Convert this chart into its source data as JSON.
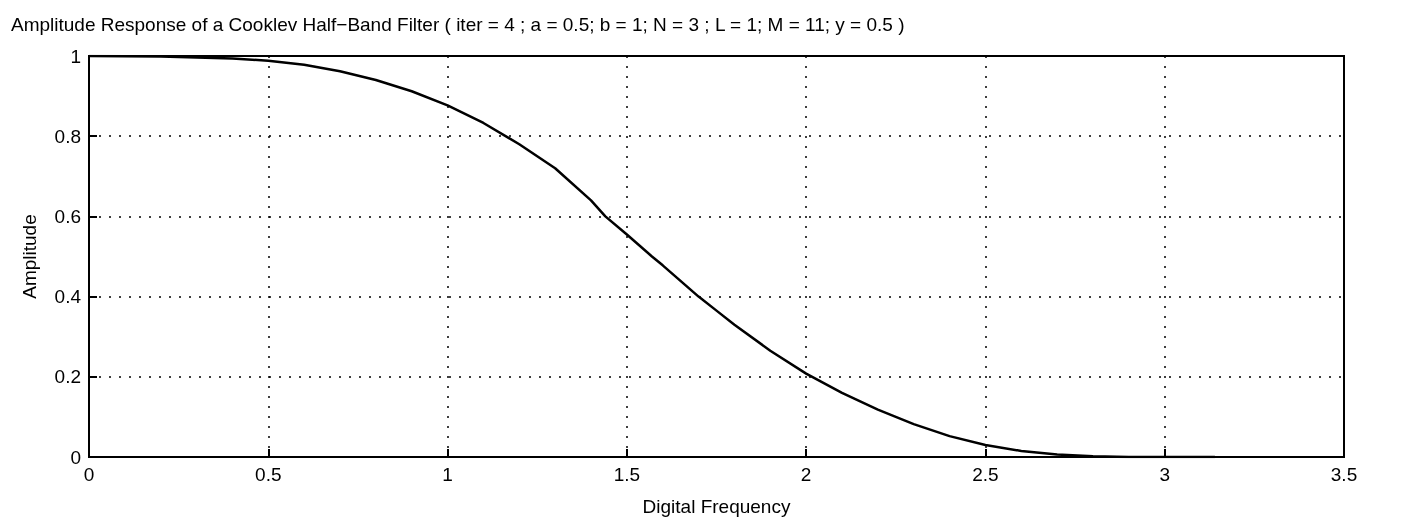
{
  "chart_data": {
    "type": "line",
    "title": "Amplitude Response of a Cooklev Half−Band Filter ( iter = 4 ; a = 0.5; b = 1; N = 3 ; L = 1; M = 11; y = 0.5 )",
    "xlabel": "Digital Frequency",
    "ylabel": "Amplitude",
    "x": [
      0,
      0.2,
      0.4,
      0.5,
      0.6,
      0.7,
      0.8,
      0.9,
      1.0,
      1.1,
      1.2,
      1.3,
      1.4,
      1.44,
      1.5,
      1.57,
      1.6,
      1.7,
      1.75,
      1.8,
      1.9,
      2.0,
      2.1,
      2.2,
      2.3,
      2.4,
      2.5,
      2.6,
      2.7,
      2.8,
      2.9,
      3.0,
      3.14
    ],
    "series": [
      {
        "color": "#000000",
        "values": [
          1,
          0.999,
          0.994,
          0.988,
          0.978,
          0.962,
          0.94,
          0.912,
          0.877,
          0.833,
          0.78,
          0.72,
          0.64,
          0.6,
          0.555,
          0.5,
          0.478,
          0.4,
          0.365,
          0.33,
          0.265,
          0.208,
          0.16,
          0.118,
          0.082,
          0.052,
          0.03,
          0.015,
          0.006,
          0.002,
          0,
          0,
          0
        ]
      }
    ],
    "xlim": [
      0,
      3.5
    ],
    "xticks": [
      0,
      0.5,
      1,
      1.5,
      2,
      2.5,
      3,
      3.5
    ],
    "ylim": [
      0,
      1
    ],
    "yticks": [
      0,
      0.2,
      0.4,
      0.6,
      0.8,
      1
    ],
    "grid": true,
    "marker": "none",
    "line_style": "solid"
  }
}
